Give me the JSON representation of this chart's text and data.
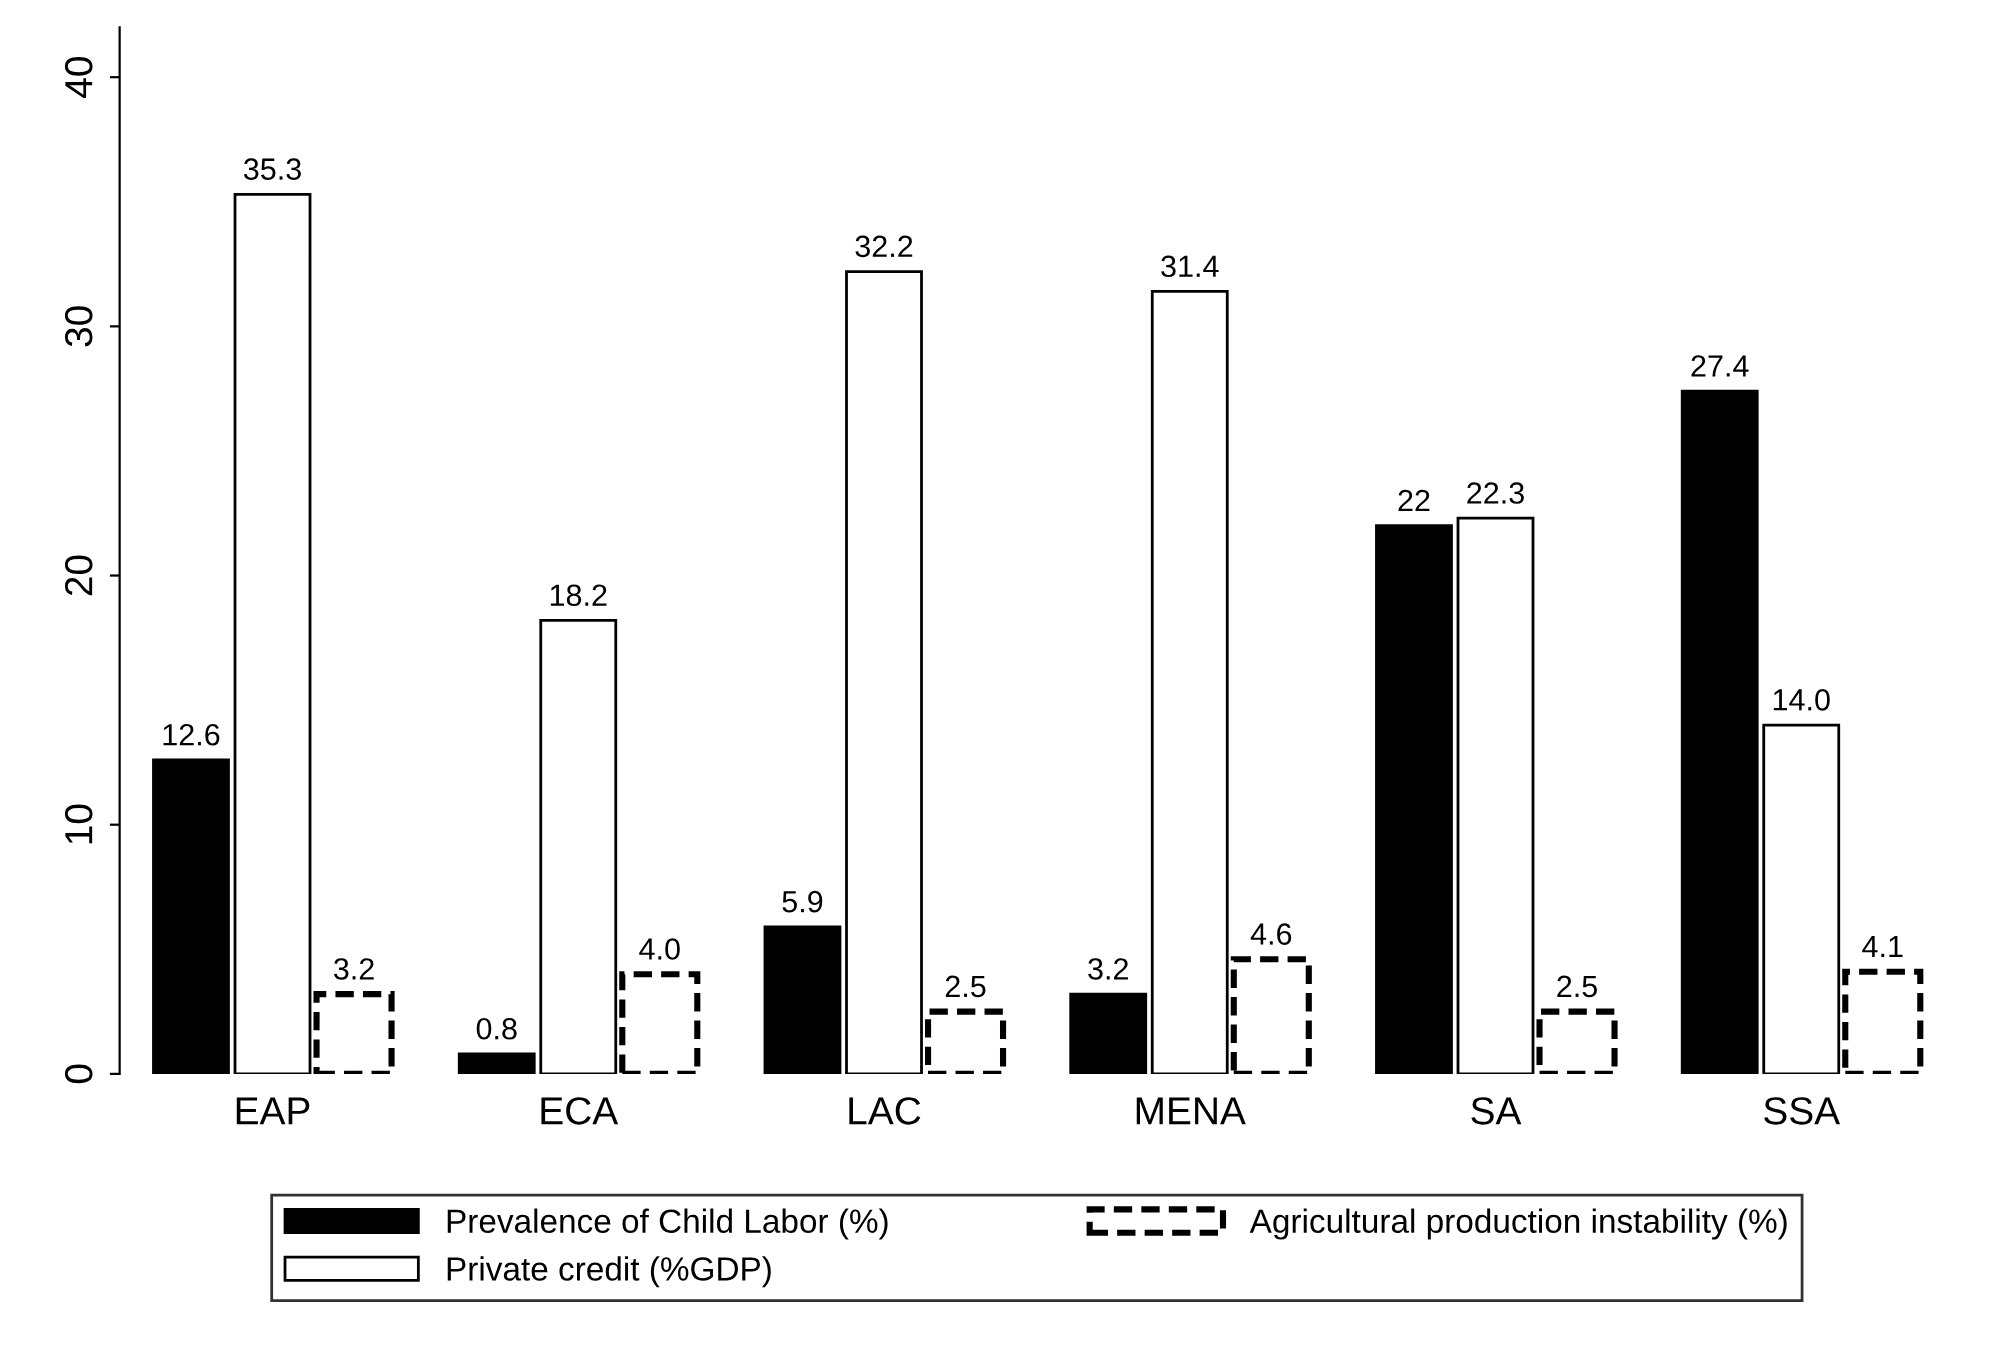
{
  "chart_data": {
    "type": "bar",
    "categories": [
      "EAP",
      "ECA",
      "LAC",
      "MENA",
      "SA",
      "SSA"
    ],
    "series": [
      {
        "name": "Prevalence of Child Labor (%)",
        "color": "#000000",
        "values": [
          12.6,
          0.8,
          5.9,
          3.2,
          22,
          27.4
        ],
        "value_labels": [
          "12.6",
          "0.8",
          "5.9",
          "3.2",
          "22",
          "27.4"
        ]
      },
      {
        "name": "Private credit (%GDP)",
        "color": "#ffffff",
        "values": [
          35.3,
          18.2,
          32.2,
          31.4,
          22.3,
          14.0
        ],
        "value_labels": [
          "35.3",
          "18.2",
          "32.2",
          "31.4",
          "22.3",
          "14.0"
        ]
      },
      {
        "name": "Agricultural production instability (%)",
        "color": "#ffffff",
        "line_style": "dashed",
        "values": [
          3.2,
          4.0,
          2.5,
          4.6,
          2.5,
          4.1
        ],
        "value_labels": [
          "3.2",
          "4.0",
          "2.5",
          "4.6",
          "2.5",
          "4.1"
        ]
      }
    ],
    "ylim": [
      0,
      42
    ],
    "yticks": [
      0,
      10,
      20,
      30,
      40
    ],
    "grid": false,
    "legend": "bottom"
  }
}
